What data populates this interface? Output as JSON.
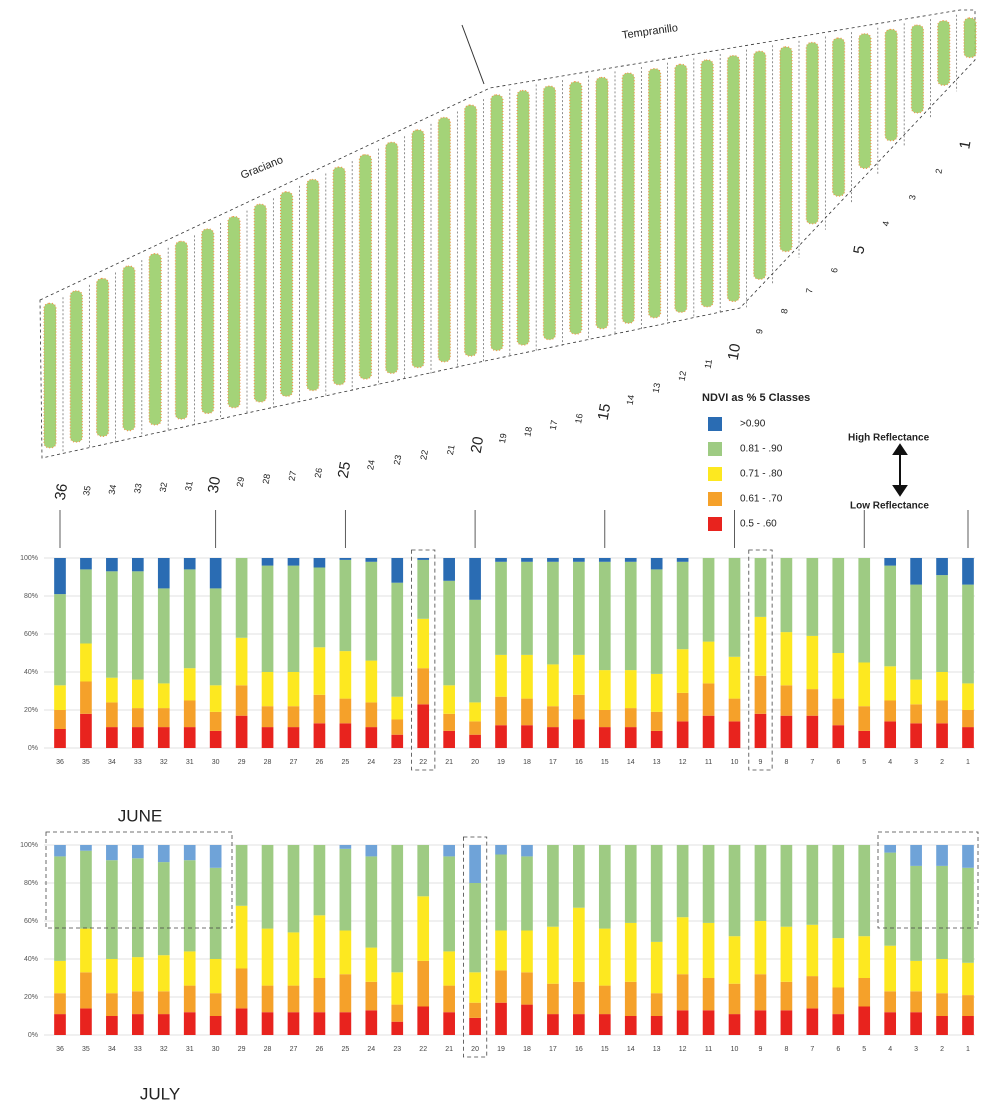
{
  "map": {
    "labels": [
      "Graciano",
      "Tempranillo"
    ],
    "row_labels": [
      "36",
      "35",
      "34",
      "33",
      "32",
      "31",
      "30",
      "29",
      "28",
      "27",
      "26",
      "25",
      "24",
      "23",
      "22",
      "21",
      "20",
      "19",
      "18",
      "17",
      "16",
      "15",
      "14",
      "13",
      "12",
      "11",
      "10",
      "9",
      "8",
      "7",
      "6",
      "5",
      "4",
      "3",
      "2",
      "1"
    ],
    "high": "High Reflectance",
    "low": "Low Reflectance"
  },
  "chart_data": [
    {
      "type": "bar",
      "stacked": true,
      "title": "JUNE",
      "legend_title": "NDVI as % 5 Classes",
      "categories": [
        "36",
        "35",
        "34",
        "33",
        "32",
        "31",
        "30",
        "29",
        "28",
        "27",
        "26",
        "25",
        "24",
        "23",
        "22",
        "21",
        "20",
        "19",
        "18",
        "17",
        "16",
        "15",
        "14",
        "13",
        "12",
        "11",
        "10",
        "9",
        "8",
        "7",
        "6",
        "5",
        "4",
        "3",
        "2",
        "1"
      ],
      "ylim": [
        0,
        100
      ],
      "yticks": [
        {
          "value": 0,
          "label": "0%"
        },
        {
          "value": 20,
          "label": "20%"
        },
        {
          "value": 40,
          "label": "40%"
        },
        {
          "value": 60,
          "label": "60%"
        },
        {
          "value": 80,
          "label": "80%"
        },
        {
          "value": 100,
          "label": "100%"
        }
      ],
      "grid": true,
      "series": [
        {
          "name": "0.5 - .60",
          "color": "#e8231e",
          "values": [
            10,
            18,
            11,
            11,
            11,
            11,
            9,
            17,
            11,
            11,
            13,
            13,
            11,
            7,
            23,
            9,
            7,
            12,
            12,
            11,
            15,
            11,
            11,
            9,
            14,
            17,
            14,
            18,
            17,
            17,
            12,
            9,
            14,
            13,
            13,
            11
          ]
        },
        {
          "name": "0.61 - .70",
          "color": "#f5a12a",
          "values": [
            10,
            17,
            13,
            10,
            10,
            14,
            10,
            16,
            11,
            11,
            15,
            13,
            13,
            8,
            19,
            9,
            7,
            15,
            14,
            11,
            13,
            9,
            10,
            10,
            15,
            17,
            12,
            20,
            16,
            14,
            14,
            13,
            11,
            10,
            12,
            9
          ]
        },
        {
          "name": "0.71 - .80",
          "color": "#fde820",
          "values": [
            13,
            20,
            13,
            15,
            13,
            17,
            14,
            25,
            18,
            18,
            25,
            25,
            22,
            12,
            26,
            15,
            10,
            22,
            23,
            22,
            21,
            21,
            20,
            20,
            23,
            22,
            22,
            31,
            28,
            28,
            24,
            23,
            18,
            13,
            15,
            14
          ]
        },
        {
          "name": "0.81 - .90",
          "color": "#9ecb83",
          "values": [
            48,
            39,
            56,
            57,
            50,
            52,
            51,
            42,
            56,
            56,
            42,
            48,
            52,
            60,
            31,
            55,
            54,
            49,
            49,
            54,
            49,
            57,
            57,
            55,
            46,
            44,
            52,
            31,
            39,
            41,
            50,
            55,
            53,
            50,
            51,
            52
          ]
        },
        {
          "name": ">0.90",
          "color": "#2a6cb3",
          "values": [
            19,
            6,
            7,
            7,
            16,
            6,
            16,
            0,
            4,
            4,
            5,
            1,
            2,
            13,
            1,
            12,
            22,
            2,
            2,
            2,
            2,
            2,
            2,
            6,
            2,
            0,
            0,
            0,
            0,
            0,
            0,
            0,
            4,
            14,
            9,
            14
          ]
        }
      ]
    },
    {
      "type": "bar",
      "stacked": true,
      "title": "JULY",
      "categories": [
        "36",
        "35",
        "34",
        "33",
        "32",
        "31",
        "30",
        "29",
        "28",
        "27",
        "26",
        "25",
        "24",
        "23",
        "22",
        "21",
        "20",
        "19",
        "18",
        "17",
        "16",
        "15",
        "14",
        "13",
        "12",
        "11",
        "10",
        "9",
        "8",
        "7",
        "6",
        "5",
        "4",
        "3",
        "2",
        "1"
      ],
      "ylim": [
        0,
        100
      ],
      "yticks": [
        {
          "value": 0,
          "label": "0%"
        },
        {
          "value": 20,
          "label": "20%"
        },
        {
          "value": 40,
          "label": "40%"
        },
        {
          "value": 60,
          "label": "60%"
        },
        {
          "value": 80,
          "label": "80%"
        },
        {
          "value": 100,
          "label": "100%"
        }
      ],
      "grid": true,
      "series": [
        {
          "color": "#e8231e",
          "values": [
            11,
            14,
            10,
            11,
            11,
            12,
            10,
            14,
            12,
            12,
            12,
            12,
            13,
            7,
            15,
            12,
            9,
            17,
            16,
            11,
            11,
            11,
            10,
            10,
            13,
            13,
            11,
            13,
            13,
            14,
            11,
            15,
            12,
            12,
            10,
            10
          ]
        },
        {
          "color": "#f5a12a",
          "values": [
            11,
            19,
            12,
            12,
            12,
            14,
            12,
            21,
            14,
            14,
            18,
            20,
            15,
            9,
            24,
            14,
            8,
            17,
            17,
            16,
            17,
            15,
            18,
            12,
            19,
            17,
            16,
            19,
            15,
            17,
            14,
            15,
            11,
            11,
            12,
            11
          ]
        },
        {
          "color": "#fde820",
          "values": [
            17,
            23,
            18,
            18,
            19,
            18,
            18,
            33,
            30,
            28,
            33,
            23,
            18,
            17,
            34,
            18,
            16,
            21,
            22,
            30,
            39,
            30,
            31,
            27,
            30,
            29,
            25,
            28,
            29,
            27,
            26,
            22,
            24,
            16,
            18,
            17
          ]
        },
        {
          "color": "#9ecb83",
          "values": [
            55,
            41,
            52,
            52,
            49,
            48,
            48,
            32,
            44,
            46,
            37,
            43,
            48,
            67,
            27,
            50,
            47,
            40,
            39,
            43,
            33,
            44,
            41,
            51,
            38,
            41,
            48,
            40,
            43,
            42,
            49,
            48,
            49,
            50,
            49,
            50
          ]
        },
        {
          "color": "#6fa3d8",
          "values": [
            6,
            3,
            8,
            7,
            9,
            8,
            12,
            0,
            0,
            0,
            0,
            2,
            6,
            0,
            0,
            6,
            20,
            5,
            6,
            0,
            0,
            0,
            0,
            0,
            0,
            0,
            0,
            0,
            0,
            0,
            0,
            0,
            4,
            11,
            11,
            12
          ]
        }
      ]
    }
  ]
}
